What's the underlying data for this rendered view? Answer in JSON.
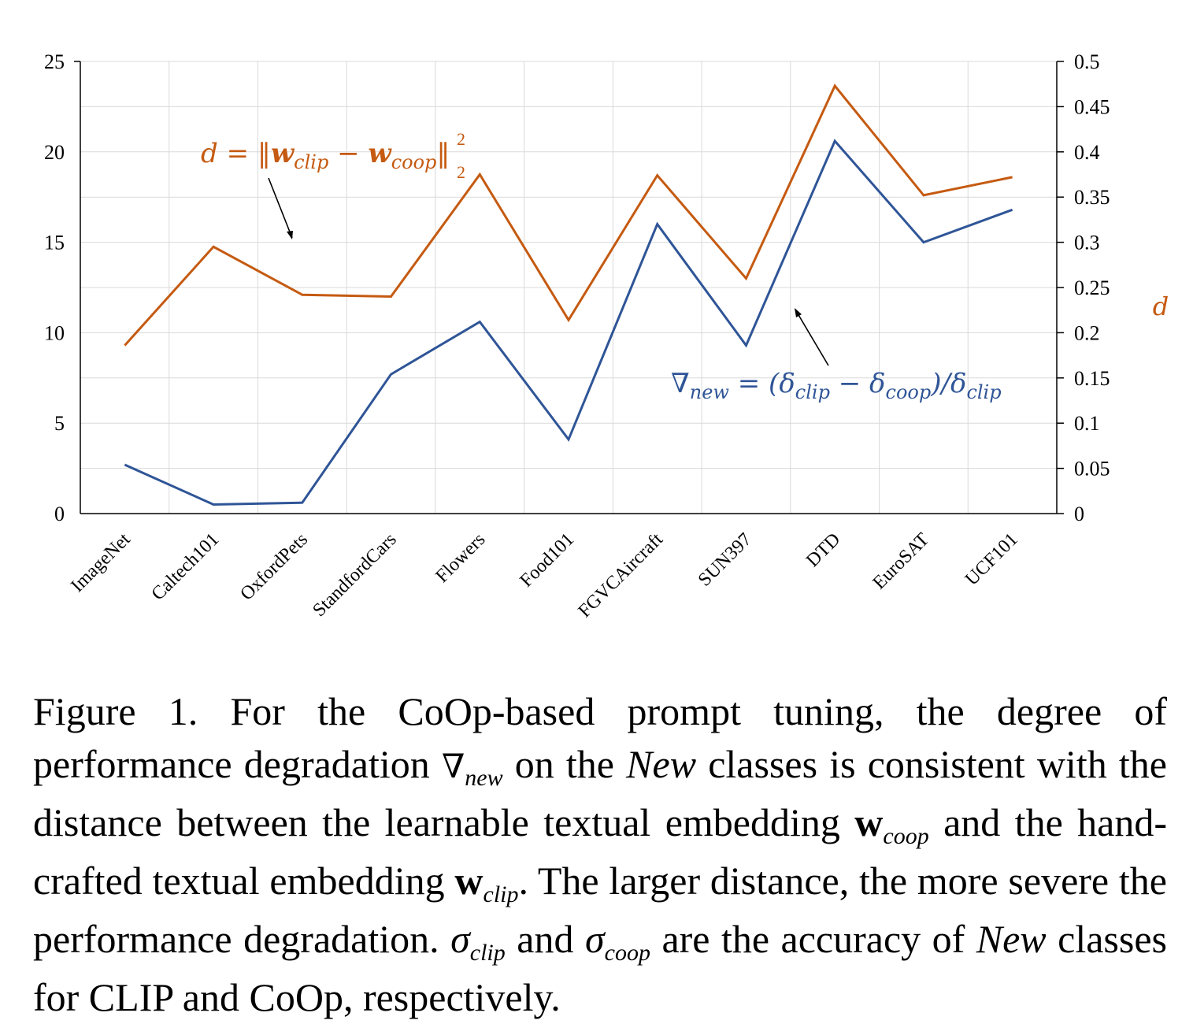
{
  "chart_data": {
    "type": "line",
    "categories": [
      "ImageNet",
      "Caltech101",
      "OxfordPets",
      "StandfordCars",
      "Flowers",
      "Food101",
      "FGVCAircraft",
      "SUN397",
      "DTD",
      "EuroSAT",
      "UCF101"
    ],
    "series": [
      {
        "name": "∇new = (δclip − δcoop)/δclip",
        "axis": "left",
        "color": "#2f5597",
        "values": [
          2.7,
          0.5,
          0.6,
          7.7,
          10.6,
          4.1,
          16.0,
          9.3,
          20.6,
          15.0,
          16.8
        ]
      },
      {
        "name": "d = ‖wclip − wcoop‖²₂",
        "axis": "right",
        "color": "#c55a11",
        "values": [
          0.186,
          0.295,
          0.242,
          0.24,
          0.375,
          0.214,
          0.374,
          0.26,
          0.473,
          0.352,
          0.372
        ]
      }
    ],
    "left_axis": {
      "ylim": [
        0,
        25
      ],
      "ticks": [
        "0",
        "5",
        "10",
        "15",
        "20",
        "25"
      ]
    },
    "right_axis": {
      "ylabel": "d",
      "ylim": [
        0,
        0.5
      ],
      "ticks": [
        "0",
        "0.05",
        "0.1",
        "0.15",
        "0.2",
        "0.25",
        "0.3",
        "0.35",
        "0.4",
        "0.45",
        "0.5"
      ]
    },
    "grid": true,
    "annotations": {
      "d_label": {
        "lhs": "d = ",
        "w1": "w",
        "s1": "clip",
        "minus": " − ",
        "w2": "w",
        "s2": "coop",
        "sup": "2",
        "sub": "2"
      },
      "nabla_label": {
        "nabla": "∇",
        "s0": "new",
        "eq": " = (δ",
        "s1": "clip",
        "minus": " − δ",
        "s2": "coop",
        "close": ")/δ",
        "s3": "clip"
      }
    }
  },
  "caption": {
    "p1": "Figure 1.  For the CoOp-based prompt tuning, the degree of performance degradation ",
    "nabla": "∇",
    "sub_new": "new",
    "p2": " on the ",
    "new1": "New",
    "p3": " classes is consistent with the distance between the learnable textual embedding ",
    "w1": "w",
    "sub_coop": "coop",
    "p4": " and the hand-crafted textual embedding ",
    "w2": "w",
    "sub_clip": "clip",
    "p5": ". The larger distance, the more severe the performance degradation. ",
    "sigma1": "σ",
    "sub_clip2": "clip",
    "p6": " and ",
    "sigma2": "σ",
    "sub_coop2": "coop",
    "p7": " are the accuracy of ",
    "new2": "New",
    "p8": " classes for CLIP and CoOp, respectively."
  }
}
